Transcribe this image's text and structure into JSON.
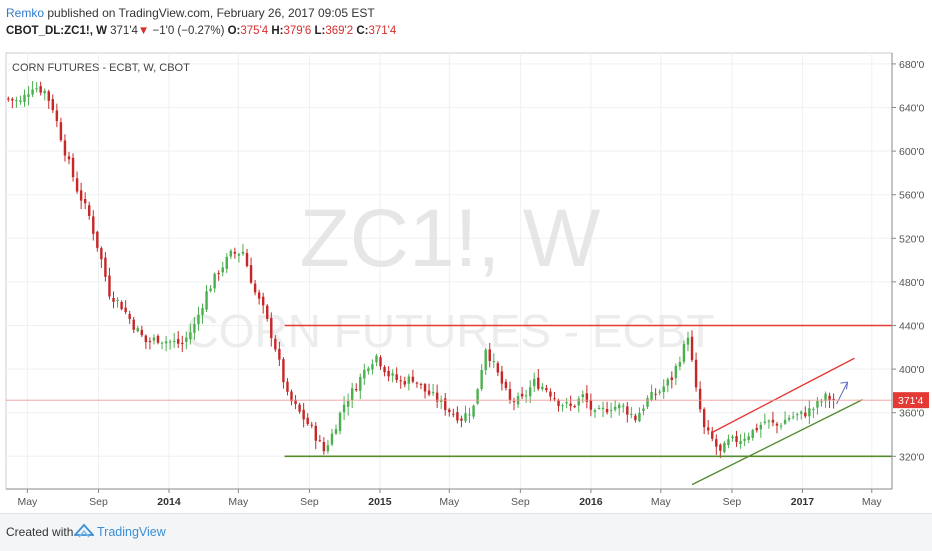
{
  "header": {
    "author": "Remko",
    "published_text": "published on TradingView.com, February 26, 2017 09:05 EST",
    "symbol_line": "CBOT_DL:ZC1!, W",
    "last": "371'4",
    "arrow": "▼",
    "change": "−1'0 (−0.27%)",
    "o_label": "O:",
    "o_value": "375'4",
    "h_label": "H:",
    "h_value": "379'6",
    "l_label": "L:",
    "l_value": "369'2",
    "c_label": "C:",
    "c_value": "371'4"
  },
  "chart_data": {
    "type": "candlestick",
    "title": "CORN FUTURES - ECBT, W, CBOT",
    "watermark_big": "ZC1!, W",
    "watermark_small": "CORN FUTURES - ECBT",
    "y_ticks": [
      "320'0",
      "360'0",
      "400'0",
      "440'0",
      "480'0",
      "520'0",
      "560'0",
      "600'0",
      "640'0",
      "680'0"
    ],
    "y_tick_values": [
      320,
      360,
      400,
      440,
      480,
      520,
      560,
      600,
      640,
      680
    ],
    "ylim": [
      290,
      690
    ],
    "x_ticks": [
      "May",
      "Sep",
      "2014",
      "May",
      "Sep",
      "2015",
      "May",
      "Sep",
      "2016",
      "May",
      "Sep",
      "2017",
      "May"
    ],
    "x_tick_dates": [
      "2013-05-01",
      "2013-09-01",
      "2014-01-01",
      "2014-05-01",
      "2014-09-01",
      "2015-01-01",
      "2015-05-01",
      "2015-09-01",
      "2016-01-01",
      "2016-05-01",
      "2016-09-01",
      "2017-01-01",
      "2017-05-01"
    ],
    "xlim": [
      "2013-03-25",
      "2017-06-05"
    ],
    "current_price_label": "371'4",
    "current_price": 371.5,
    "bullish_color": "#4caf50",
    "bearish_color": "#c62828",
    "weekly_close_anchors": [
      [
        "2013-03-29",
        648
      ],
      [
        "2013-04-19",
        645
      ],
      [
        "2013-05-10",
        660
      ],
      [
        "2013-05-31",
        655
      ],
      [
        "2013-06-14",
        640
      ],
      [
        "2013-07-05",
        600
      ],
      [
        "2013-07-26",
        565
      ],
      [
        "2013-08-16",
        540
      ],
      [
        "2013-09-06",
        500
      ],
      [
        "2013-09-20",
        470
      ],
      [
        "2013-10-11",
        458
      ],
      [
        "2013-11-01",
        440
      ],
      [
        "2013-11-22",
        425
      ],
      [
        "2013-12-13",
        428
      ],
      [
        "2014-01-03",
        425
      ],
      [
        "2014-01-24",
        423
      ],
      [
        "2014-02-14",
        440
      ],
      [
        "2014-03-07",
        470
      ],
      [
        "2014-03-28",
        490
      ],
      [
        "2014-04-18",
        505
      ],
      [
        "2014-05-09",
        508
      ],
      [
        "2014-05-30",
        470
      ],
      [
        "2014-06-13",
        455
      ],
      [
        "2014-07-04",
        420
      ],
      [
        "2014-07-25",
        375
      ],
      [
        "2014-08-15",
        360
      ],
      [
        "2014-09-05",
        345
      ],
      [
        "2014-09-26",
        325
      ],
      [
        "2014-10-10",
        340
      ],
      [
        "2014-10-31",
        368
      ],
      [
        "2014-11-21",
        385
      ],
      [
        "2014-12-12",
        405
      ],
      [
        "2014-12-26",
        412
      ],
      [
        "2015-01-16",
        395
      ],
      [
        "2015-02-06",
        388
      ],
      [
        "2015-02-27",
        392
      ],
      [
        "2015-03-20",
        380
      ],
      [
        "2015-04-10",
        372
      ],
      [
        "2015-05-01",
        362
      ],
      [
        "2015-05-22",
        355
      ],
      [
        "2015-06-12",
        365
      ],
      [
        "2015-07-03",
        420
      ],
      [
        "2015-07-24",
        395
      ],
      [
        "2015-08-14",
        370
      ],
      [
        "2015-09-04",
        372
      ],
      [
        "2015-09-25",
        388
      ],
      [
        "2015-10-16",
        382
      ],
      [
        "2015-11-06",
        370
      ],
      [
        "2015-11-27",
        365
      ],
      [
        "2015-12-18",
        375
      ],
      [
        "2016-01-08",
        358
      ],
      [
        "2016-02-05",
        366
      ],
      [
        "2016-02-26",
        365
      ],
      [
        "2016-03-18",
        355
      ],
      [
        "2016-04-08",
        372
      ],
      [
        "2016-04-29",
        380
      ],
      [
        "2016-05-20",
        392
      ],
      [
        "2016-06-10",
        420
      ],
      [
        "2016-06-17",
        432
      ],
      [
        "2016-07-01",
        380
      ],
      [
        "2016-07-15",
        345
      ],
      [
        "2016-07-29",
        335
      ],
      [
        "2016-08-12",
        323
      ],
      [
        "2016-08-26",
        333
      ],
      [
        "2016-09-16",
        336
      ],
      [
        "2016-10-07",
        343
      ],
      [
        "2016-10-28",
        352
      ],
      [
        "2016-11-18",
        348
      ],
      [
        "2016-12-09",
        356
      ],
      [
        "2016-12-30",
        358
      ],
      [
        "2017-01-20",
        364
      ],
      [
        "2017-02-10",
        374
      ],
      [
        "2017-02-24",
        371.5
      ]
    ],
    "annotations": [
      {
        "type": "horizontal_line",
        "value": 440,
        "color": "#e53935",
        "from": "2014-07-20",
        "to": "2017-06-05"
      },
      {
        "type": "horizontal_line",
        "value": 320,
        "color": "#558b2f",
        "from": "2014-07-20",
        "to": "2017-06-05"
      },
      {
        "type": "trend_line",
        "color": "#e53935",
        "points": [
          [
            "2016-07-29",
            342
          ],
          [
            "2017-04-01",
            410
          ]
        ]
      },
      {
        "type": "trend_line",
        "color": "#558b2f",
        "points": [
          [
            "2016-06-24",
            294
          ],
          [
            "2017-04-15",
            372
          ]
        ]
      },
      {
        "type": "arrow",
        "color": "#5c6bc0",
        "points": [
          [
            "2017-03-01",
            368
          ],
          [
            "2017-03-20",
            388
          ]
        ]
      }
    ]
  },
  "footer": {
    "created_with": "Created with",
    "brand": "TradingView"
  }
}
